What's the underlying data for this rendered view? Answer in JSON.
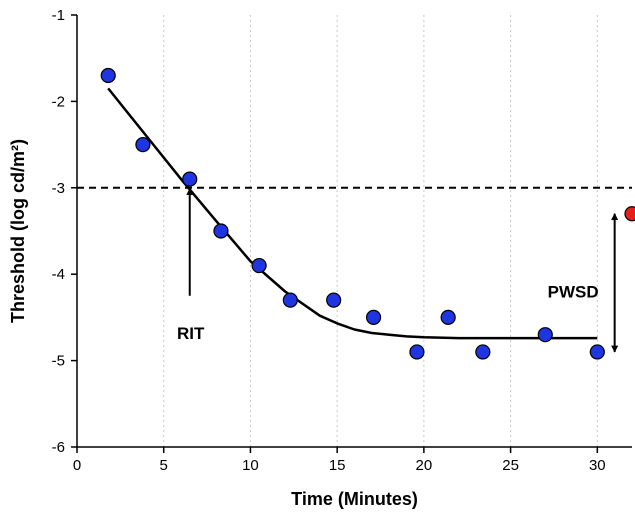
{
  "chart_data": {
    "type": "scatter",
    "xlabel": "Time (Minutes)",
    "ylabel": "Threshold (log cd/m²)",
    "xlim": [
      0,
      32
    ],
    "ylim": [
      -6,
      -1
    ],
    "xticks": [
      "0",
      "5",
      "10",
      "15",
      "20",
      "25",
      "30"
    ],
    "yticks": [
      "-6",
      "-5",
      "-4",
      "-3",
      "-2",
      "-1"
    ],
    "grid": "vertical dotted",
    "series": [
      {
        "kind": "points",
        "color": "#1f35e0",
        "x": [
          1.8,
          3.8,
          6.5,
          8.3,
          10.5,
          12.3,
          14.8,
          17.1,
          19.6,
          21.4,
          23.4,
          27.0,
          30.0
        ],
        "y": [
          -1.7,
          -2.5,
          -2.9,
          -3.5,
          -3.9,
          -4.3,
          -4.3,
          -4.5,
          -4.9,
          -4.5,
          -4.9,
          -4.7,
          -4.9
        ]
      },
      {
        "kind": "fit-line",
        "color": "#000000",
        "x": [
          1.8,
          4,
          6,
          8,
          10,
          12,
          14,
          15,
          16,
          17,
          18,
          19,
          20,
          22,
          25,
          28,
          30
        ],
        "y": [
          -1.85,
          -2.4,
          -2.9,
          -3.38,
          -3.85,
          -4.2,
          -4.48,
          -4.57,
          -4.64,
          -4.68,
          -4.7,
          -4.72,
          -4.73,
          -4.74,
          -4.74,
          -4.74,
          -4.74
        ]
      },
      {
        "kind": "points",
        "color": "#e61e1e",
        "x": [
          32.0
        ],
        "y": [
          -3.3
        ]
      }
    ],
    "reference_line": {
      "y": -3,
      "style": "dashed"
    },
    "annotations": [
      {
        "label": "RIT",
        "arrow_x": 6.5,
        "arrow_from_y": -4.25,
        "arrow_to_y": -3.0
      },
      {
        "label": "PWSD",
        "arrow_x": 31.0,
        "arrow_from_y": -4.9,
        "arrow_to_y": -3.3
      }
    ]
  }
}
